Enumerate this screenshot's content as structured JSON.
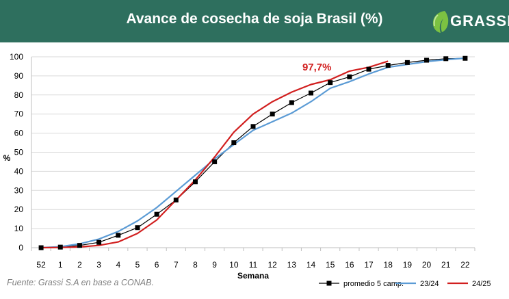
{
  "header": {
    "title": "Avance de cosecha de soja Brasil (%)",
    "logo_text": "GRASSI",
    "background": "#2e6f5e"
  },
  "source": "Fuente: Grassi S.A en base a CONAB.",
  "chart_data": {
    "type": "line",
    "xlabel": "Semana",
    "ylabel": "%",
    "categories": [
      "52",
      "1",
      "2",
      "3",
      "4",
      "5",
      "6",
      "7",
      "8",
      "9",
      "10",
      "11",
      "12",
      "13",
      "14",
      "15",
      "16",
      "17",
      "18",
      "19",
      "20",
      "21",
      "22"
    ],
    "ylim": [
      0,
      100
    ],
    "yticks": [
      0,
      10,
      20,
      30,
      40,
      50,
      60,
      70,
      80,
      90,
      100
    ],
    "grid": "horizontal",
    "legend_position": "bottom-right",
    "annotation": {
      "text": "97,7%",
      "category": "18",
      "value": 97.7,
      "color": "#d11f1f"
    },
    "series": [
      {
        "name": "promedio 5 camp.",
        "color": "#000000",
        "marker": "square",
        "values": [
          0,
          0.3,
          1.2,
          2.8,
          6.5,
          10.5,
          17.5,
          25,
          34.5,
          45,
          55,
          63.5,
          70,
          76,
          81,
          86.5,
          89.5,
          93.5,
          95.5,
          97,
          98.2,
          99,
          99.2
        ]
      },
      {
        "name": "23/24",
        "color": "#5b9bd5",
        "marker": "none",
        "values": [
          0,
          0.5,
          2,
          4.5,
          8.5,
          14,
          21,
          29.5,
          38,
          46.5,
          54,
          61.5,
          66,
          70.5,
          76.5,
          83.5,
          87,
          91,
          94.5,
          96,
          97.5,
          98.5,
          99.3
        ]
      },
      {
        "name": "24/25",
        "color": "#d11f1f",
        "marker": "none",
        "values": [
          0,
          0.1,
          0.4,
          1.2,
          3,
          7.5,
          14.5,
          25,
          35.5,
          47.5,
          60.5,
          70,
          76.5,
          81.5,
          85.5,
          88,
          92.5,
          94.5,
          97.7,
          null,
          null,
          null,
          null
        ]
      }
    ]
  }
}
